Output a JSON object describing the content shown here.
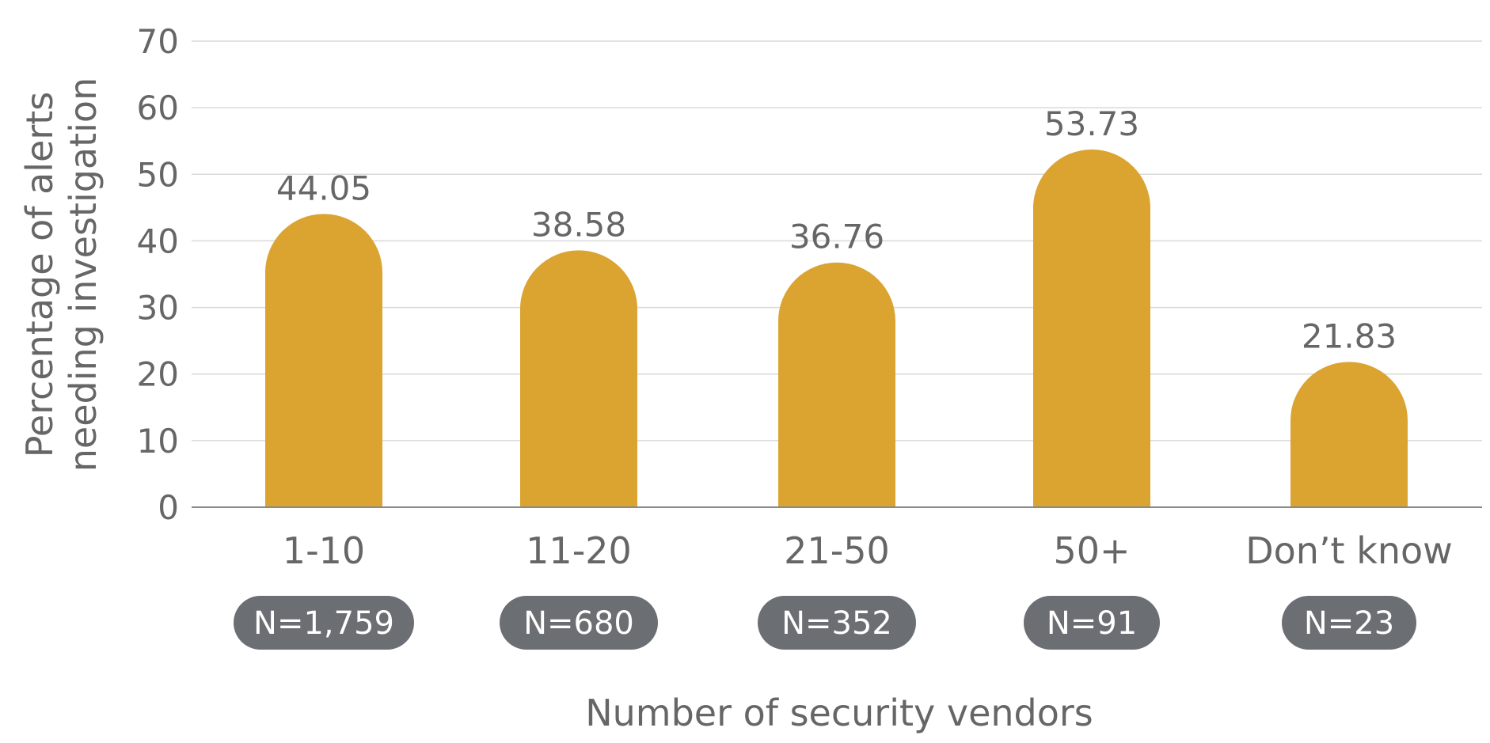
{
  "chart_data": {
    "type": "bar",
    "categories": [
      "1-10",
      "11-20",
      "21-50",
      "50+",
      "Don’t know"
    ],
    "values": [
      44.05,
      38.58,
      36.76,
      53.73,
      21.83
    ],
    "value_labels": [
      "44.05",
      "38.58",
      "36.76",
      "53.73",
      "21.83"
    ],
    "sample_sizes": [
      "N=1,759",
      "N=680",
      "N=352",
      "N=91",
      "N=23"
    ],
    "xlabel": "Number of security vendors",
    "ylabel_lines": [
      "Percentage of alerts",
      "needing investigation"
    ],
    "ylim": [
      0,
      70
    ],
    "yticks": [
      0,
      10,
      20,
      30,
      40,
      50,
      60,
      70
    ],
    "grid": true,
    "bar_color": "#DBA431",
    "pill_color": "#6B6E72",
    "gridline_color": "#D9D9D9",
    "axis_line_color": "#8A8A8A",
    "text_color": "#666666"
  }
}
